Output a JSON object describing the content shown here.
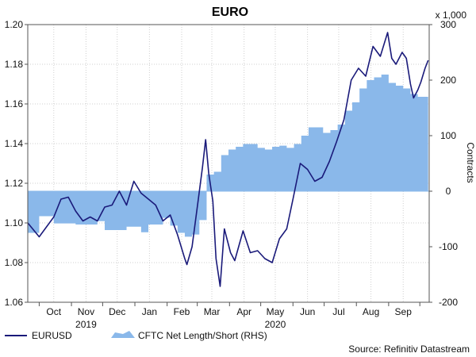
{
  "chart_data": {
    "type": "line+area",
    "title": "EURO",
    "right_axis_multiplier": "x 1,000",
    "right_axis_label": "Contracts",
    "left_ylim": [
      1.06,
      1.2
    ],
    "left_yticks": [
      "1.20",
      "1.18",
      "1.16",
      "1.14",
      "1.12",
      "1.10",
      "1.08",
      "1.06"
    ],
    "right_ylim": [
      -200,
      300
    ],
    "right_yticks": [
      "300",
      "200",
      "100",
      "0",
      "-100",
      "-200"
    ],
    "x_month_labels": [
      "Oct",
      "Nov",
      "Dec",
      "Jan",
      "Feb",
      "Mar",
      "Apr",
      "May",
      "Jun",
      "Jul",
      "Aug",
      "Sep"
    ],
    "x_year_labels": [
      {
        "text": "2019",
        "anchor_month": "Nov"
      },
      {
        "text": "2020",
        "anchor_month": "May"
      }
    ],
    "grid": true,
    "legend_position": "bottom-left",
    "source_text": "Source: Refinitiv Datastream",
    "series": [
      {
        "name": "EURUSD",
        "axis": "left",
        "kind": "line",
        "color": "#1a1a7a",
        "points": [
          [
            "2019-09-20",
            1.1
          ],
          [
            "2019-10-01",
            1.093
          ],
          [
            "2019-10-08",
            1.098
          ],
          [
            "2019-10-15",
            1.103
          ],
          [
            "2019-10-22",
            1.112
          ],
          [
            "2019-10-29",
            1.113
          ],
          [
            "2019-11-05",
            1.106
          ],
          [
            "2019-11-12",
            1.101
          ],
          [
            "2019-11-19",
            1.103
          ],
          [
            "2019-11-26",
            1.101
          ],
          [
            "2019-12-03",
            1.108
          ],
          [
            "2019-12-10",
            1.109
          ],
          [
            "2019-12-17",
            1.116
          ],
          [
            "2019-12-24",
            1.109
          ],
          [
            "2019-12-31",
            1.121
          ],
          [
            "2020-01-07",
            1.115
          ],
          [
            "2020-01-14",
            1.112
          ],
          [
            "2020-01-21",
            1.109
          ],
          [
            "2020-01-28",
            1.101
          ],
          [
            "2020-02-04",
            1.104
          ],
          [
            "2020-02-11",
            1.094
          ],
          [
            "2020-02-18",
            1.082
          ],
          [
            "2020-02-20",
            1.079
          ],
          [
            "2020-02-25",
            1.088
          ],
          [
            "2020-03-02",
            1.112
          ],
          [
            "2020-03-06",
            1.128
          ],
          [
            "2020-03-09",
            1.142
          ],
          [
            "2020-03-12",
            1.125
          ],
          [
            "2020-03-16",
            1.111
          ],
          [
            "2020-03-19",
            1.082
          ],
          [
            "2020-03-23",
            1.068
          ],
          [
            "2020-03-27",
            1.097
          ],
          [
            "2020-04-02",
            1.085
          ],
          [
            "2020-04-06",
            1.081
          ],
          [
            "2020-04-14",
            1.096
          ],
          [
            "2020-04-21",
            1.085
          ],
          [
            "2020-04-28",
            1.086
          ],
          [
            "2020-05-05",
            1.082
          ],
          [
            "2020-05-12",
            1.08
          ],
          [
            "2020-05-19",
            1.092
          ],
          [
            "2020-05-26",
            1.097
          ],
          [
            "2020-06-01",
            1.112
          ],
          [
            "2020-06-08",
            1.13
          ],
          [
            "2020-06-15",
            1.127
          ],
          [
            "2020-06-22",
            1.121
          ],
          [
            "2020-06-29",
            1.123
          ],
          [
            "2020-07-06",
            1.131
          ],
          [
            "2020-07-13",
            1.141
          ],
          [
            "2020-07-20",
            1.152
          ],
          [
            "2020-07-27",
            1.172
          ],
          [
            "2020-08-03",
            1.178
          ],
          [
            "2020-08-10",
            1.174
          ],
          [
            "2020-08-17",
            1.189
          ],
          [
            "2020-08-24",
            1.184
          ],
          [
            "2020-08-31",
            1.196
          ],
          [
            "2020-09-04",
            1.183
          ],
          [
            "2020-09-08",
            1.18
          ],
          [
            "2020-09-14",
            1.186
          ],
          [
            "2020-09-18",
            1.183
          ],
          [
            "2020-09-22",
            1.17
          ],
          [
            "2020-09-25",
            1.163
          ],
          [
            "2020-09-29",
            1.167
          ],
          [
            "2020-10-02",
            1.171
          ],
          [
            "2020-10-06",
            1.178
          ],
          [
            "2020-10-09",
            1.182
          ]
        ]
      },
      {
        "name": "CFTC Net Length/Short (RHS)",
        "axis": "right",
        "kind": "step-area",
        "color": "#8ab8ea",
        "points": [
          [
            "2019-09-20",
            -75
          ],
          [
            "2019-10-01",
            -45
          ],
          [
            "2019-10-15",
            -58
          ],
          [
            "2019-11-05",
            -60
          ],
          [
            "2019-11-26",
            -54
          ],
          [
            "2019-12-03",
            -70
          ],
          [
            "2019-12-24",
            -64
          ],
          [
            "2020-01-07",
            -74
          ],
          [
            "2020-01-14",
            -60
          ],
          [
            "2020-01-28",
            -48
          ],
          [
            "2020-02-04",
            -62
          ],
          [
            "2020-02-11",
            -75
          ],
          [
            "2020-02-18",
            -82
          ],
          [
            "2020-02-25",
            -78
          ],
          [
            "2020-03-03",
            -52
          ],
          [
            "2020-03-10",
            30
          ],
          [
            "2020-03-17",
            35
          ],
          [
            "2020-03-24",
            65
          ],
          [
            "2020-03-31",
            75
          ],
          [
            "2020-04-07",
            80
          ],
          [
            "2020-04-14",
            85
          ],
          [
            "2020-04-28",
            78
          ],
          [
            "2020-05-05",
            75
          ],
          [
            "2020-05-12",
            80
          ],
          [
            "2020-05-19",
            82
          ],
          [
            "2020-05-26",
            78
          ],
          [
            "2020-06-02",
            85
          ],
          [
            "2020-06-09",
            100
          ],
          [
            "2020-06-16",
            115
          ],
          [
            "2020-06-30",
            105
          ],
          [
            "2020-07-07",
            110
          ],
          [
            "2020-07-14",
            120
          ],
          [
            "2020-07-21",
            145
          ],
          [
            "2020-07-28",
            160
          ],
          [
            "2020-08-04",
            185
          ],
          [
            "2020-08-11",
            200
          ],
          [
            "2020-08-18",
            205
          ],
          [
            "2020-08-25",
            210
          ],
          [
            "2020-09-01",
            195
          ],
          [
            "2020-09-08",
            190
          ],
          [
            "2020-09-15",
            185
          ],
          [
            "2020-09-22",
            175
          ],
          [
            "2020-09-29",
            170
          ],
          [
            "2020-10-09",
            172
          ]
        ]
      }
    ]
  }
}
